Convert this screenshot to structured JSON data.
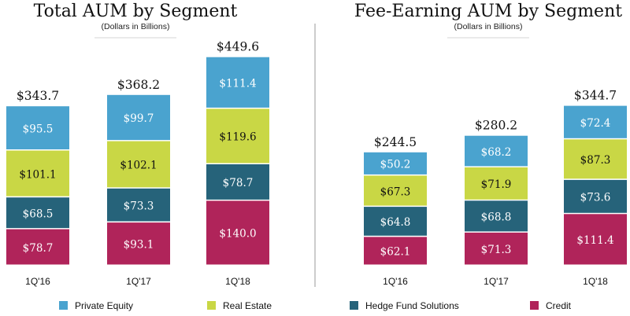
{
  "legend": [
    {
      "name": "Private Equity",
      "color": "#4aa3cf"
    },
    {
      "name": "Real Estate",
      "color": "#c9d745"
    },
    {
      "name": "Hedge Fund Solutions",
      "color": "#26637a"
    },
    {
      "name": "Credit",
      "color": "#b0245a"
    }
  ],
  "chart_data": [
    {
      "type": "bar",
      "stacked": true,
      "title": "Total AUM by Segment",
      "subtitle": "(Dollars in Billions)",
      "categories": [
        "1Q'16",
        "1Q'17",
        "1Q'18"
      ],
      "totals": [
        "$343.7",
        "$368.2",
        "$449.6"
      ],
      "series": [
        {
          "name": "Credit",
          "values": [
            78.7,
            93.1,
            140.0
          ],
          "labels": [
            "$78.7",
            "$93.1",
            "$140.0"
          ],
          "color": "#b0245a",
          "text_color": "#ffffff"
        },
        {
          "name": "Hedge Fund Solutions",
          "values": [
            68.5,
            73.3,
            78.7
          ],
          "labels": [
            "$68.5",
            "$73.3",
            "$78.7"
          ],
          "color": "#26637a",
          "text_color": "#ffffff"
        },
        {
          "name": "Real Estate",
          "values": [
            101.1,
            102.1,
            119.6
          ],
          "labels": [
            "$101.1",
            "$102.1",
            "$119.6"
          ],
          "color": "#c9d745",
          "text_color": "#111111"
        },
        {
          "name": "Private Equity",
          "values": [
            95.5,
            99.7,
            111.4
          ],
          "labels": [
            "$95.5",
            "$99.7",
            "$111.4"
          ],
          "color": "#4aa3cf",
          "text_color": "#ffffff"
        }
      ]
    },
    {
      "type": "bar",
      "stacked": true,
      "title": "Fee-Earning AUM by Segment",
      "subtitle": "(Dollars in Billions)",
      "categories": [
        "1Q'16",
        "1Q'17",
        "1Q'18"
      ],
      "totals": [
        "$244.5",
        "$280.2",
        "$344.7"
      ],
      "series": [
        {
          "name": "Credit",
          "values": [
            62.1,
            71.3,
            111.4
          ],
          "labels": [
            "$62.1",
            "$71.3",
            "$111.4"
          ],
          "color": "#b0245a",
          "text_color": "#ffffff"
        },
        {
          "name": "Hedge Fund Solutions",
          "values": [
            64.8,
            68.8,
            73.6
          ],
          "labels": [
            "$64.8",
            "$68.8",
            "$73.6"
          ],
          "color": "#26637a",
          "text_color": "#ffffff"
        },
        {
          "name": "Real Estate",
          "values": [
            67.3,
            71.9,
            87.3
          ],
          "labels": [
            "$67.3",
            "$71.9",
            "$87.3"
          ],
          "color": "#c9d745",
          "text_color": "#111111"
        },
        {
          "name": "Private Equity",
          "values": [
            50.2,
            68.2,
            72.4
          ],
          "labels": [
            "$50.2",
            "$68.2",
            "$72.4"
          ],
          "color": "#4aa3cf",
          "text_color": "#ffffff"
        }
      ]
    }
  ]
}
